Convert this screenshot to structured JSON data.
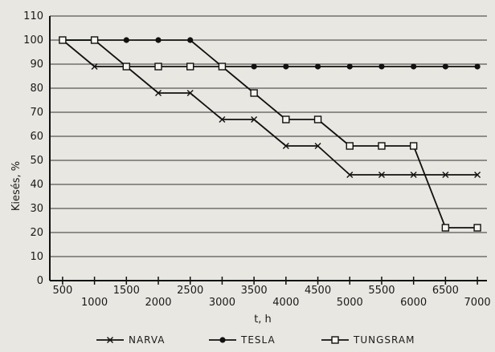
{
  "chart_data": {
    "type": "line",
    "xlabel": "t, h",
    "ylabel": "Kiesés, %",
    "x_ticks_upper": [
      500,
      1500,
      2500,
      3500,
      4500,
      5500,
      6500
    ],
    "x_ticks_lower": [
      1000,
      2000,
      3000,
      4000,
      5000,
      6000,
      7000
    ],
    "y_ticks": [
      0,
      10,
      20,
      30,
      40,
      50,
      60,
      70,
      80,
      90,
      100,
      110
    ],
    "xlim": [
      300,
      7150
    ],
    "ylim": [
      0,
      110
    ],
    "grid": "horizontal",
    "legend_position": "bottom",
    "series": [
      {
        "name": "NARVA",
        "marker": "cross",
        "x": [
          500,
          1000,
          1500,
          2000,
          2500,
          3000,
          3500,
          4000,
          4500,
          5000,
          5500,
          6000,
          6500,
          7000
        ],
        "y": [
          100,
          89,
          89,
          78,
          78,
          67,
          67,
          56,
          56,
          44,
          44,
          44,
          44,
          44
        ]
      },
      {
        "name": "TESLA",
        "marker": "filled-circle",
        "x": [
          500,
          1000,
          1500,
          2000,
          2500,
          3000,
          3500,
          4000,
          4500,
          5000,
          5500,
          6000,
          6500,
          7000
        ],
        "y": [
          100,
          100,
          100,
          100,
          100,
          89,
          89,
          89,
          89,
          89,
          89,
          89,
          89,
          89
        ]
      },
      {
        "name": "TUNGSRAM",
        "marker": "open-square",
        "x": [
          500,
          1000,
          1500,
          2000,
          2500,
          3000,
          3500,
          4000,
          4500,
          5000,
          5500,
          6000,
          6500,
          7000
        ],
        "y": [
          100,
          100,
          89,
          89,
          89,
          89,
          78,
          67,
          67,
          56,
          56,
          56,
          22,
          22
        ]
      }
    ]
  }
}
